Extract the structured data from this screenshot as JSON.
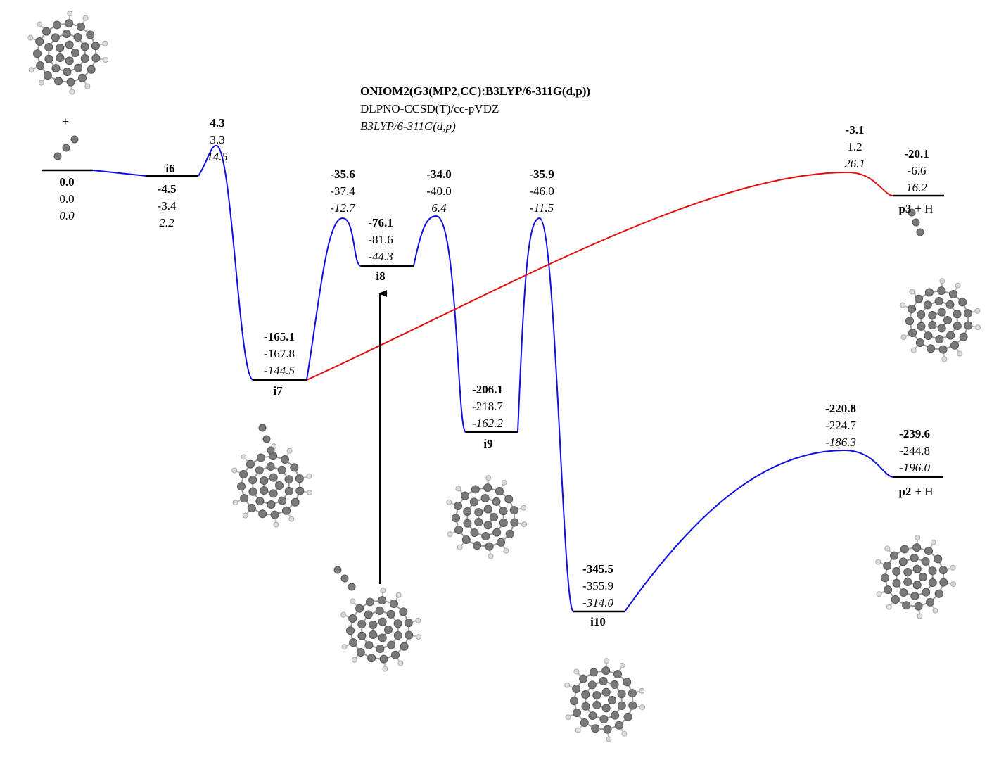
{
  "header": {
    "lines": [
      "ONIOM2(G3(MP2,CC):B3LYP/6-311G(d,p))",
      "DLPNO-CCSD(T)/cc-pVDZ",
      "B3LYP/6-311G(d,p)"
    ]
  },
  "plus": "+",
  "species": [
    {
      "energies": [
        "0.0",
        "0.0",
        "0.0"
      ]
    },
    {
      "label": "i6",
      "energies": [
        "-4.5",
        "-3.4",
        "2.2"
      ]
    },
    {
      "energies": [
        "4.3",
        "3.3",
        "14.5"
      ]
    },
    {
      "label": "i7",
      "energies": [
        "-165.1",
        "-167.8",
        "-144.5"
      ]
    },
    {
      "energies": [
        "-35.6",
        "-37.4",
        "-12.7"
      ]
    },
    {
      "label": "i8",
      "energies": [
        "-76.1",
        "-81.6",
        "-44.3"
      ]
    },
    {
      "energies": [
        "-34.0",
        "-40.0",
        "6.4"
      ]
    },
    {
      "label": "i9",
      "energies": [
        "-206.1",
        "-218.7",
        "-162.2"
      ]
    },
    {
      "energies": [
        "-35.9",
        "-46.0",
        "-11.5"
      ]
    },
    {
      "label": "i10",
      "energies": [
        "-345.5",
        "-355.9",
        "-314.0"
      ]
    },
    {
      "energies": [
        "-220.8",
        "-224.7",
        "-186.3"
      ]
    },
    {
      "label": "p2",
      "suffix": "+ H",
      "energies": [
        "-239.6",
        "-244.8",
        "-196.0"
      ]
    },
    {
      "energies": [
        "-3.1",
        "1.2",
        "26.1"
      ]
    },
    {
      "label": "p3",
      "suffix": "+ H",
      "energies": [
        "-20.1",
        "-6.6",
        "16.2"
      ]
    }
  ]
}
